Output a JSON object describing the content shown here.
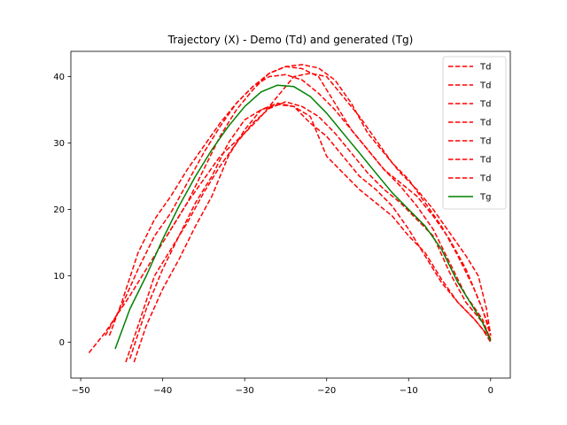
{
  "chart_data": {
    "type": "line",
    "title": "Trajectory (X) - Demo (Td) and generated (Tg)",
    "xlabel": "",
    "ylabel": "",
    "xlim": [
      -51.2,
      2.4
    ],
    "ylim": [
      -5.4,
      43.8
    ],
    "xticks": [
      -50,
      -40,
      -30,
      -20,
      -10,
      0
    ],
    "yticks": [
      0,
      10,
      20,
      30,
      40
    ],
    "xtick_labels": [
      "−50",
      "−40",
      "−30",
      "−20",
      "−10",
      "0"
    ],
    "ytick_labels": [
      "0",
      "10",
      "20",
      "30",
      "40"
    ],
    "grid": false,
    "legend_position": "top-right",
    "series": [
      {
        "name": "Td",
        "color": "#ff0000",
        "style": "dashed",
        "points": [
          [
            -49,
            -1.6
          ],
          [
            -47,
            1.5
          ],
          [
            -44,
            7
          ],
          [
            -42,
            11
          ],
          [
            -39.5,
            16
          ],
          [
            -37,
            21
          ],
          [
            -35,
            24.5
          ],
          [
            -33,
            28
          ],
          [
            -30,
            31.5
          ],
          [
            -28,
            34
          ],
          [
            -26,
            37
          ],
          [
            -25,
            38.5
          ],
          [
            -24,
            40
          ],
          [
            -22,
            40.5
          ],
          [
            -20,
            40
          ],
          [
            -18,
            37
          ],
          [
            -16,
            34
          ],
          [
            -14,
            30.5
          ],
          [
            -12,
            27
          ],
          [
            -10,
            24.5
          ],
          [
            -8,
            21
          ],
          [
            -6,
            17.5
          ],
          [
            -4,
            13
          ],
          [
            -2,
            8
          ],
          [
            -1,
            5
          ],
          [
            0,
            1
          ]
        ]
      },
      {
        "name": "Td",
        "color": "#ff0000",
        "style": "dashed",
        "points": [
          [
            -46.5,
            1
          ],
          [
            -45,
            6
          ],
          [
            -43,
            13.5
          ],
          [
            -41,
            18.5
          ],
          [
            -39,
            22
          ],
          [
            -37,
            26
          ],
          [
            -35,
            29.5
          ],
          [
            -33,
            33
          ],
          [
            -31,
            36
          ],
          [
            -29,
            38.5
          ],
          [
            -27,
            40.5
          ],
          [
            -25,
            41.5
          ],
          [
            -23,
            41.2
          ],
          [
            -21,
            40
          ],
          [
            -19,
            36
          ],
          [
            -17,
            32
          ],
          [
            -15,
            29
          ],
          [
            -13,
            26
          ],
          [
            -11,
            23.5
          ],
          [
            -9,
            20.5
          ],
          [
            -7,
            17
          ],
          [
            -5,
            12
          ],
          [
            -3,
            7
          ],
          [
            -1,
            3.5
          ],
          [
            0,
            0.3
          ]
        ]
      },
      {
        "name": "Td",
        "color": "#ff0000",
        "style": "dashed",
        "points": [
          [
            -44,
            -2.5
          ],
          [
            -42,
            5
          ],
          [
            -40,
            11
          ],
          [
            -38,
            16
          ],
          [
            -36,
            21
          ],
          [
            -34,
            25
          ],
          [
            -32,
            30
          ],
          [
            -30,
            33.5
          ],
          [
            -28,
            35
          ],
          [
            -26,
            35.8
          ],
          [
            -24,
            35.5
          ],
          [
            -22,
            33
          ],
          [
            -20,
            31
          ],
          [
            -18,
            28
          ],
          [
            -16,
            25
          ],
          [
            -14,
            23
          ],
          [
            -12,
            20.5
          ],
          [
            -10,
            17
          ],
          [
            -8,
            13
          ],
          [
            -6,
            9
          ],
          [
            -4,
            6
          ],
          [
            -2,
            3.5
          ],
          [
            -1,
            2
          ],
          [
            0,
            0
          ]
        ]
      },
      {
        "name": "Td",
        "color": "#ff0000",
        "style": "dashed",
        "points": [
          [
            -43.5,
            -3
          ],
          [
            -42,
            2.5
          ],
          [
            -40,
            8
          ],
          [
            -38,
            12.5
          ],
          [
            -36,
            17.5
          ],
          [
            -34,
            22
          ],
          [
            -32,
            28
          ],
          [
            -30,
            32
          ],
          [
            -28,
            35
          ],
          [
            -26,
            36
          ],
          [
            -24,
            35.5
          ],
          [
            -22,
            34
          ],
          [
            -21,
            31
          ],
          [
            -20,
            28
          ],
          [
            -18,
            25.5
          ],
          [
            -16,
            23
          ],
          [
            -14,
            21
          ],
          [
            -12,
            19
          ],
          [
            -10,
            16
          ],
          [
            -8,
            13.5
          ],
          [
            -6,
            9.5
          ],
          [
            -4,
            6
          ],
          [
            -2,
            3.5
          ],
          [
            0,
            0.5
          ]
        ]
      },
      {
        "name": "Td",
        "color": "#ff0000",
        "style": "dashed",
        "points": [
          [
            -47,
            1
          ],
          [
            -45,
            5.5
          ],
          [
            -43,
            11
          ],
          [
            -41,
            16
          ],
          [
            -39,
            19.5
          ],
          [
            -37,
            24
          ],
          [
            -35,
            28.5
          ],
          [
            -33,
            32.5
          ],
          [
            -31,
            36
          ],
          [
            -29,
            38.5
          ],
          [
            -27,
            40
          ],
          [
            -25,
            40.3
          ],
          [
            -23,
            39.5
          ],
          [
            -21,
            37.5
          ],
          [
            -19,
            35
          ],
          [
            -17,
            32
          ],
          [
            -15,
            29
          ],
          [
            -13,
            26
          ],
          [
            -11,
            24
          ],
          [
            -9,
            22
          ],
          [
            -7,
            19
          ],
          [
            -5,
            15.5
          ],
          [
            -3,
            11
          ],
          [
            -1,
            5
          ],
          [
            0,
            1.5
          ]
        ]
      },
      {
        "name": "Td",
        "color": "#ff0000",
        "style": "dashed",
        "points": [
          [
            -44.5,
            -3
          ],
          [
            -43,
            2.5
          ],
          [
            -41,
            10
          ],
          [
            -39,
            14
          ],
          [
            -37,
            18
          ],
          [
            -35,
            22.5
          ],
          [
            -33,
            26.5
          ],
          [
            -31,
            30
          ],
          [
            -29,
            33
          ],
          [
            -27,
            35.2
          ],
          [
            -25,
            36.2
          ],
          [
            -23,
            35.5
          ],
          [
            -21,
            34
          ],
          [
            -19,
            31.5
          ],
          [
            -17,
            28.5
          ],
          [
            -15,
            25.5
          ],
          [
            -13,
            23
          ],
          [
            -11,
            21
          ],
          [
            -9,
            18.5
          ],
          [
            -7,
            16
          ],
          [
            -5,
            10.5
          ],
          [
            -3,
            6
          ],
          [
            -1,
            3
          ],
          [
            0,
            0.5
          ]
        ]
      },
      {
        "name": "Td",
        "color": "#ff0000",
        "style": "dashed",
        "points": [
          [
            -39.5,
            16
          ],
          [
            -37,
            21
          ],
          [
            -35,
            26
          ],
          [
            -33,
            31
          ],
          [
            -31,
            35
          ],
          [
            -29,
            38
          ],
          [
            -27,
            40.5
          ],
          [
            -25,
            41.5
          ],
          [
            -23,
            41.8
          ],
          [
            -21,
            41.3
          ],
          [
            -19,
            39.5
          ],
          [
            -17,
            36
          ],
          [
            -15,
            31.5
          ],
          [
            -13,
            28.5
          ],
          [
            -11,
            25.5
          ],
          [
            -9,
            23
          ],
          [
            -7,
            20
          ],
          [
            -5,
            16.5
          ],
          [
            -3,
            13
          ],
          [
            -1.5,
            10
          ],
          [
            -0.5,
            5
          ],
          [
            0,
            1
          ]
        ]
      },
      {
        "name": "Tg",
        "color": "#008000",
        "style": "solid",
        "points": [
          [
            -45.8,
            -1
          ],
          [
            -44,
            5
          ],
          [
            -42,
            10
          ],
          [
            -40,
            15.5
          ],
          [
            -38,
            20.5
          ],
          [
            -36,
            25
          ],
          [
            -34,
            29
          ],
          [
            -32,
            32.5
          ],
          [
            -30,
            35.5
          ],
          [
            -28,
            37.7
          ],
          [
            -26,
            38.7
          ],
          [
            -24,
            38.5
          ],
          [
            -22,
            37
          ],
          [
            -20,
            34.5
          ],
          [
            -18,
            31.5
          ],
          [
            -16,
            28.5
          ],
          [
            -14,
            25.5
          ],
          [
            -12,
            22.5
          ],
          [
            -10,
            20
          ],
          [
            -8,
            17.5
          ],
          [
            -6,
            14
          ],
          [
            -4,
            9
          ],
          [
            -2,
            5
          ],
          [
            -1,
            3
          ],
          [
            0,
            0.2
          ]
        ]
      }
    ]
  }
}
